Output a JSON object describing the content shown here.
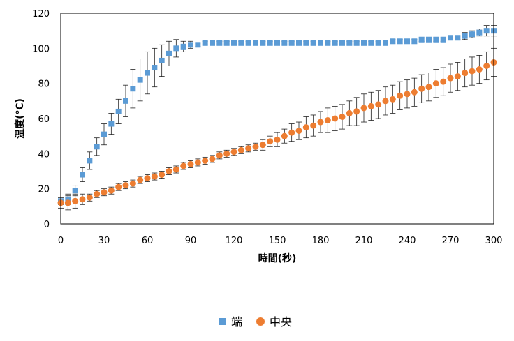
{
  "chart_data": {
    "type": "scatter",
    "xlabel": "時間(秒)",
    "ylabel": "温度(℃)",
    "xlim": [
      0,
      300
    ],
    "ylim": [
      0,
      120
    ],
    "xticks": [
      0,
      30,
      60,
      90,
      120,
      150,
      180,
      210,
      240,
      270,
      300
    ],
    "yticks": [
      0,
      20,
      40,
      60,
      80,
      100,
      120
    ],
    "grid": false,
    "legend_position": "bottom",
    "error_bars": true,
    "series": [
      {
        "name": "端",
        "marker": "square",
        "color": "#5b9bd5",
        "x": [
          0,
          5,
          10,
          15,
          20,
          25,
          30,
          35,
          40,
          45,
          50,
          55,
          60,
          65,
          70,
          75,
          80,
          85,
          90,
          95,
          100,
          105,
          110,
          115,
          120,
          125,
          130,
          135,
          140,
          145,
          150,
          155,
          160,
          165,
          170,
          175,
          180,
          185,
          190,
          195,
          200,
          205,
          210,
          215,
          220,
          225,
          230,
          235,
          240,
          245,
          250,
          255,
          260,
          265,
          270,
          275,
          280,
          285,
          290,
          295,
          300
        ],
        "y": [
          13,
          14,
          19,
          28,
          36,
          44,
          51,
          57,
          64,
          70,
          77,
          82,
          86,
          89,
          93,
          97,
          100,
          101,
          102,
          102,
          103,
          103,
          103,
          103,
          103,
          103,
          103,
          103,
          103,
          103,
          103,
          103,
          103,
          103,
          103,
          103,
          103,
          103,
          103,
          103,
          103,
          103,
          103,
          103,
          103,
          103,
          104,
          104,
          104,
          104,
          105,
          105,
          105,
          105,
          106,
          106,
          107,
          108,
          109,
          110,
          110
        ],
        "error": [
          2,
          3,
          3,
          4,
          5,
          5,
          6,
          6,
          7,
          9,
          11,
          12,
          12,
          11,
          9,
          7,
          5,
          3,
          2,
          1,
          1,
          1,
          1,
          1,
          1,
          1,
          1,
          1,
          1,
          1,
          1,
          1,
          1,
          1,
          1,
          1,
          1,
          1,
          1,
          1,
          1,
          1,
          1,
          1,
          1,
          1,
          1,
          1,
          1,
          1,
          1,
          1,
          1,
          1,
          1,
          1,
          2,
          2,
          2,
          3,
          3
        ]
      },
      {
        "name": "中央",
        "marker": "circle",
        "color": "#ed7d31",
        "x": [
          0,
          5,
          10,
          15,
          20,
          25,
          30,
          35,
          40,
          45,
          50,
          55,
          60,
          65,
          70,
          75,
          80,
          85,
          90,
          95,
          100,
          105,
          110,
          115,
          120,
          125,
          130,
          135,
          140,
          145,
          150,
          155,
          160,
          165,
          170,
          175,
          180,
          185,
          190,
          195,
          200,
          205,
          210,
          215,
          220,
          225,
          230,
          235,
          240,
          245,
          250,
          255,
          260,
          265,
          270,
          275,
          280,
          285,
          290,
          295,
          300
        ],
        "y": [
          12,
          12,
          13,
          14,
          15,
          17,
          18,
          19,
          21,
          22,
          23,
          25,
          26,
          27,
          28,
          30,
          31,
          33,
          34,
          35,
          36,
          37,
          39,
          40,
          41,
          42,
          43,
          44,
          45,
          47,
          48,
          50,
          52,
          53,
          55,
          56,
          58,
          59,
          60,
          61,
          63,
          64,
          66,
          67,
          68,
          70,
          71,
          73,
          74,
          75,
          77,
          78,
          80,
          81,
          83,
          84,
          86,
          87,
          88,
          90,
          92
        ],
        "error": [
          3,
          4,
          4,
          3,
          2,
          2,
          2,
          2,
          2,
          2,
          2,
          2,
          2,
          2,
          2,
          2,
          2,
          2,
          2,
          2,
          2,
          2,
          2,
          2,
          2,
          2,
          2,
          2,
          3,
          3,
          4,
          4,
          5,
          5,
          6,
          6,
          6,
          7,
          7,
          7,
          7,
          8,
          8,
          8,
          8,
          8,
          8,
          8,
          8,
          8,
          8,
          8,
          8,
          8,
          8,
          8,
          8,
          8,
          8,
          8,
          8
        ]
      }
    ]
  }
}
